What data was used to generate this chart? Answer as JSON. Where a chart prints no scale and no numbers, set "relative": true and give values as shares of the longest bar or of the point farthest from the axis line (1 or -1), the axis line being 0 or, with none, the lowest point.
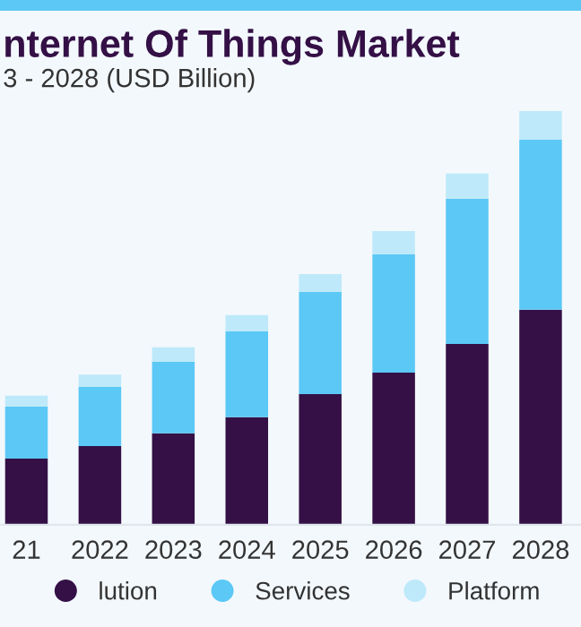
{
  "chart_data": {
    "type": "bar",
    "title": "nternet Of Things Market",
    "subtitle": "3 - 2028 (USD Billion)",
    "categories": [
      "21",
      "2022",
      "2023",
      "2024",
      "2025",
      "2026",
      "2027",
      "2028"
    ],
    "relative": true,
    "stacked": true,
    "legend": "bottom",
    "series": [
      {
        "name": "lution",
        "color": "#341046",
        "values": [
          0.16,
          0.19,
          0.221,
          0.26,
          0.316,
          0.368,
          0.437,
          0.52
        ]
      },
      {
        "name": "Services",
        "color": "#5bc8f5",
        "values": [
          0.126,
          0.143,
          0.173,
          0.208,
          0.247,
          0.286,
          0.351,
          0.411
        ]
      },
      {
        "name": "Platform",
        "color": "#bde9fa",
        "values": [
          0.026,
          0.03,
          0.035,
          0.039,
          0.043,
          0.056,
          0.061,
          0.069
        ]
      }
    ]
  }
}
